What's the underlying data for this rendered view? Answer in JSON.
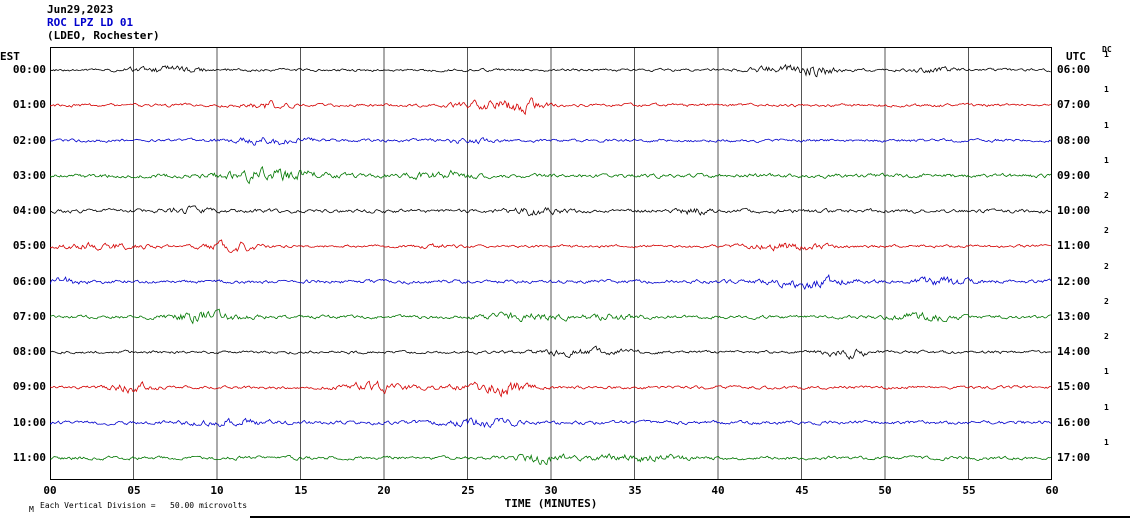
{
  "header": {
    "date": "Jun29,2023",
    "station_line": "ROC LPZ LD 01",
    "network_line": "(LDEO, Rochester)"
  },
  "axis": {
    "left_tz": "EST",
    "right_tz": "UTC",
    "dc_label": "DC",
    "x_title": "TIME (MINUTES)",
    "x_ticks": [
      "00",
      "05",
      "10",
      "15",
      "20",
      "25",
      "30",
      "35",
      "40",
      "45",
      "50",
      "55",
      "60"
    ]
  },
  "footer": {
    "marker": "M",
    "scale_note": "Each Vertical Division =   50.00 microvolts"
  },
  "chart_data": {
    "type": "line",
    "title": "ROC LPZ LD 01 (LDEO, Rochester) helicorder, Jun29,2023",
    "description": "12 hourly seismogram traces of low-amplitude background noise; one hour per row, 60 minutes per line, colors cycle black/red/blue/green",
    "x_axis": {
      "label": "TIME (MINUTES)",
      "range": [
        0,
        60
      ],
      "tick_interval": 5
    },
    "y_scale_note": "Each Vertical Division = 50.00 microvolts",
    "rows": [
      {
        "est": "00:00",
        "utc": "06:00",
        "color": "#000000",
        "dc": "1",
        "seed": 11
      },
      {
        "est": "01:00",
        "utc": "07:00",
        "color": "#d40000",
        "dc": "1",
        "seed": 22
      },
      {
        "est": "02:00",
        "utc": "08:00",
        "color": "#0000cc",
        "dc": "1",
        "seed": 33
      },
      {
        "est": "03:00",
        "utc": "09:00",
        "color": "#007700",
        "dc": "1",
        "seed": 44
      },
      {
        "est": "04:00",
        "utc": "10:00",
        "color": "#000000",
        "dc": "2",
        "seed": 55
      },
      {
        "est": "05:00",
        "utc": "11:00",
        "color": "#d40000",
        "dc": "2",
        "seed": 66
      },
      {
        "est": "06:00",
        "utc": "12:00",
        "color": "#0000cc",
        "dc": "2",
        "seed": 77
      },
      {
        "est": "07:00",
        "utc": "13:00",
        "color": "#007700",
        "dc": "2",
        "seed": 88
      },
      {
        "est": "08:00",
        "utc": "14:00",
        "color": "#000000",
        "dc": "2",
        "seed": 99
      },
      {
        "est": "09:00",
        "utc": "15:00",
        "color": "#d40000",
        "dc": "1",
        "seed": 110
      },
      {
        "est": "10:00",
        "utc": "16:00",
        "color": "#0000cc",
        "dc": "1",
        "seed": 121
      },
      {
        "est": "11:00",
        "utc": "17:00",
        "color": "#007700",
        "dc": "1",
        "seed": 132
      }
    ]
  }
}
